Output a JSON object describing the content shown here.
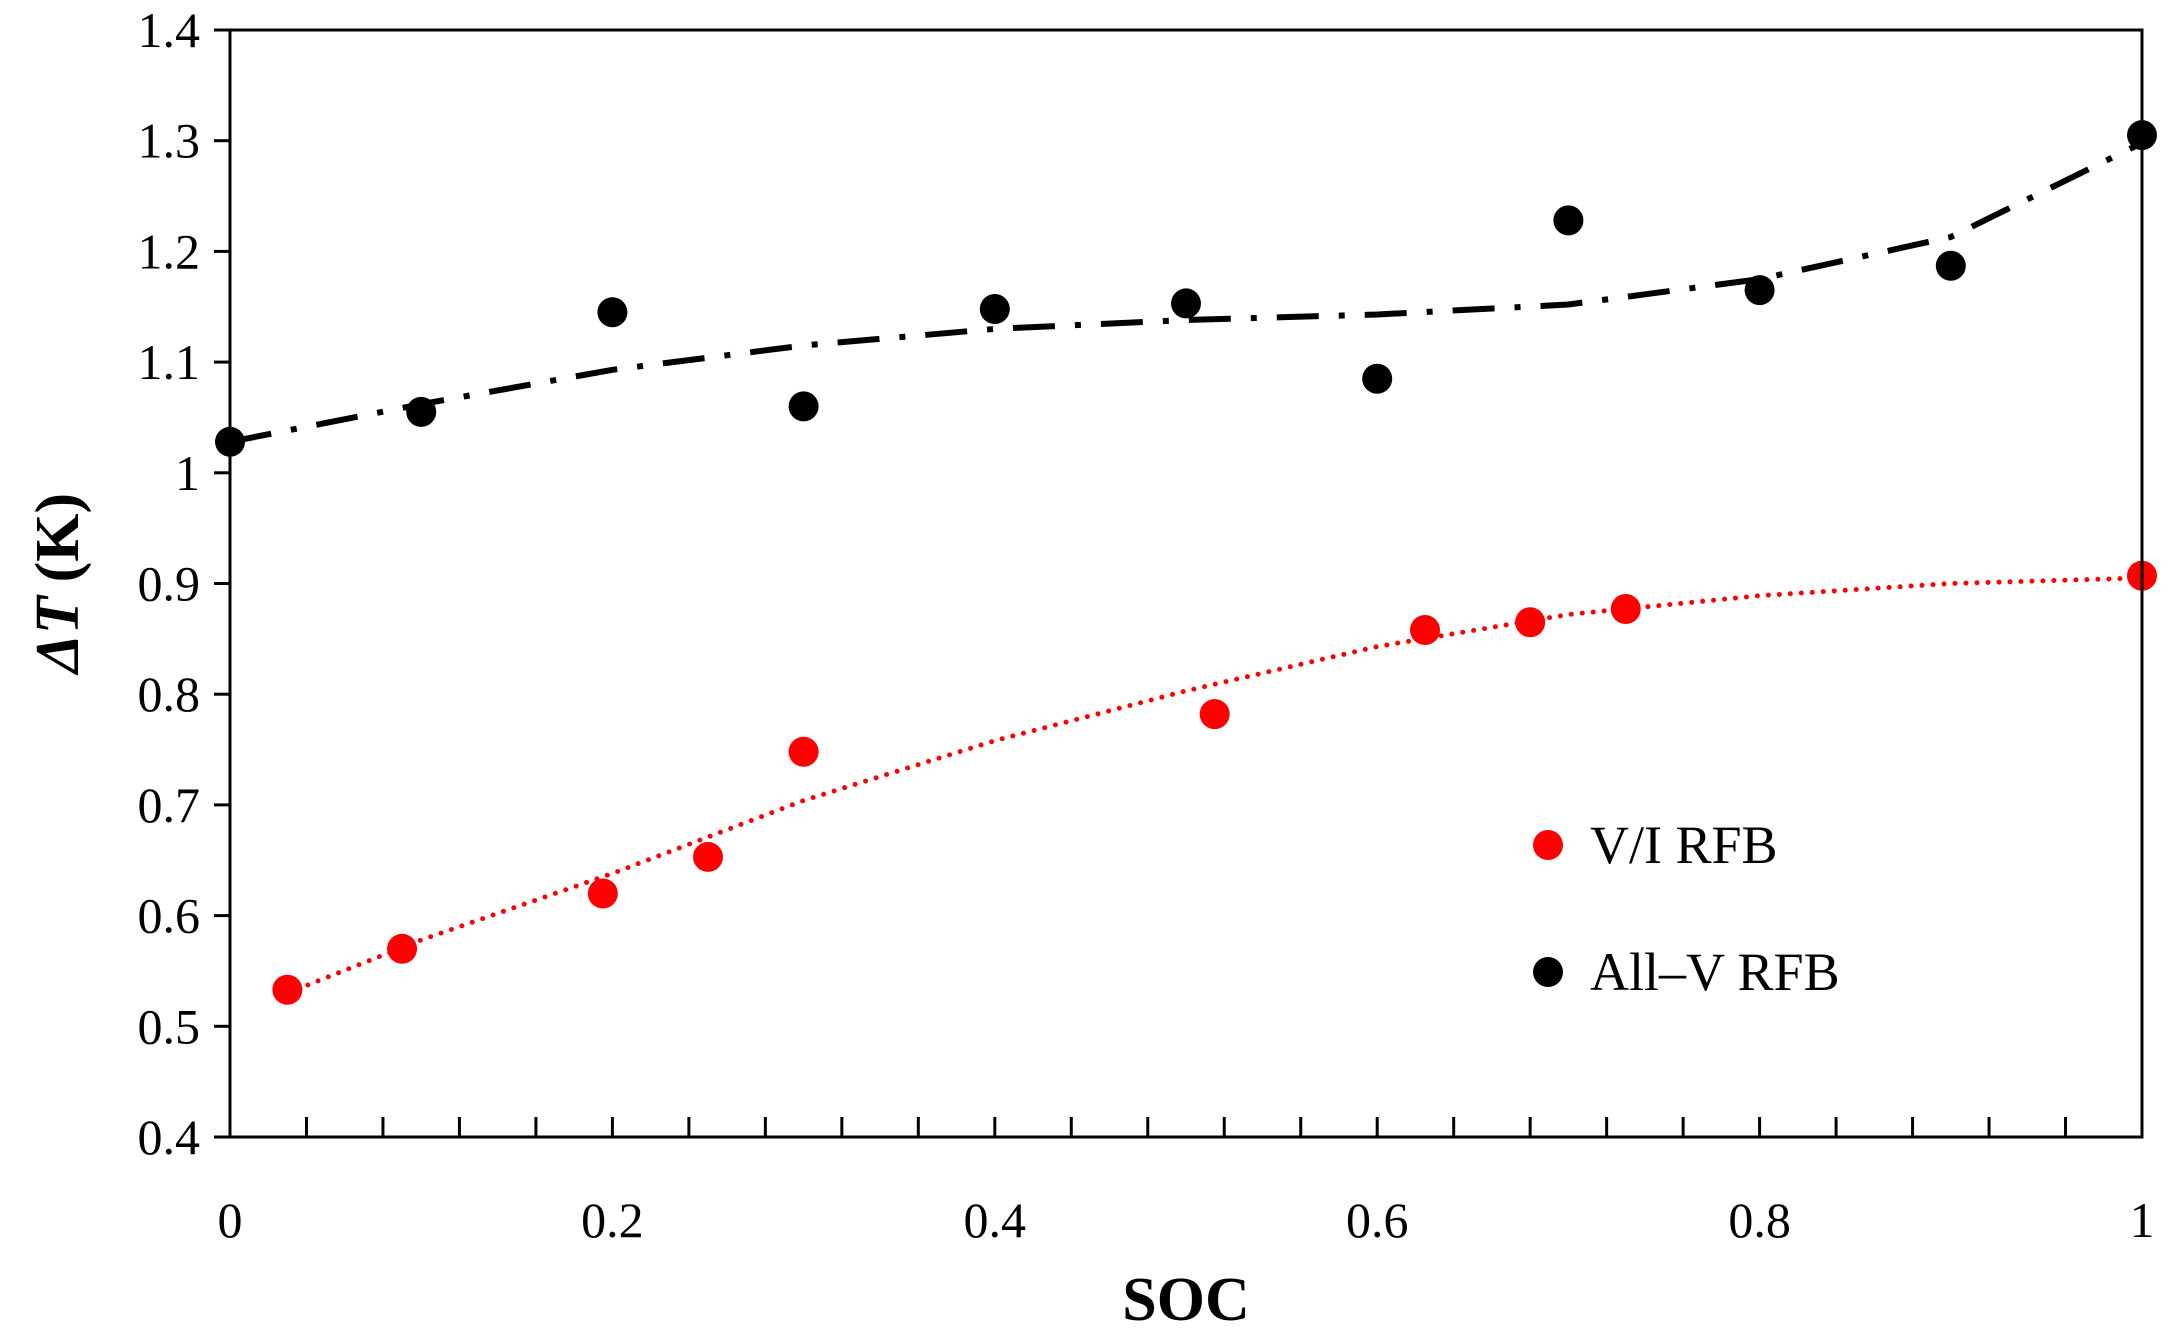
{
  "chart_data": {
    "type": "scatter",
    "title": "",
    "xlabel": "SOC",
    "ylabel_symbol": "ΔT",
    "ylabel_unit": "(K)",
    "xlim": [
      0,
      1
    ],
    "ylim": [
      0.4,
      1.4
    ],
    "x_ticks": [
      "0",
      "0.2",
      "0.4",
      "0.6",
      "0.8",
      "1"
    ],
    "x_tick_values": [
      0,
      0.2,
      0.4,
      0.6,
      0.8,
      1
    ],
    "x_minor_step": 0.04,
    "y_ticks": [
      "0.4",
      "0.5",
      "0.6",
      "0.7",
      "0.8",
      "0.9",
      "1",
      "1.1",
      "1.2",
      "1.3",
      "1.4"
    ],
    "y_tick_values": [
      0.4,
      0.5,
      0.6,
      0.7,
      0.8,
      0.9,
      1.0,
      1.1,
      1.2,
      1.3,
      1.4
    ],
    "grid": false,
    "legend_position": "right",
    "series": [
      {
        "name": "V/I RFB",
        "color": "#ff0000",
        "x": [
          0.03,
          0.09,
          0.195,
          0.25,
          0.3,
          0.515,
          0.625,
          0.68,
          0.73,
          1.0
        ],
        "y": [
          0.533,
          0.57,
          0.62,
          0.653,
          0.748,
          0.782,
          0.858,
          0.865,
          0.877,
          0.907
        ],
        "trend_style": "dotted",
        "trend_x": [
          0.03,
          0.1,
          0.2,
          0.3,
          0.4,
          0.5,
          0.6,
          0.7,
          0.8,
          0.9,
          1.0
        ],
        "trend_y": [
          0.53,
          0.578,
          0.638,
          0.704,
          0.758,
          0.803,
          0.843,
          0.872,
          0.889,
          0.9,
          0.905
        ]
      },
      {
        "name": "All–V RFB",
        "color": "#000000",
        "x": [
          0.0,
          0.1,
          0.2,
          0.3,
          0.4,
          0.5,
          0.6,
          0.7,
          0.8,
          0.9,
          1.0
        ],
        "y": [
          1.028,
          1.055,
          1.145,
          1.06,
          1.148,
          1.153,
          1.085,
          1.228,
          1.165,
          1.187,
          1.305
        ],
        "trend_style": "dashdot",
        "trend_x": [
          0.0,
          0.1,
          0.2,
          0.3,
          0.4,
          0.5,
          0.6,
          0.7,
          0.8,
          0.9,
          1.0
        ],
        "trend_y": [
          1.028,
          1.062,
          1.093,
          1.115,
          1.13,
          1.138,
          1.143,
          1.152,
          1.175,
          1.213,
          1.298
        ]
      }
    ]
  }
}
